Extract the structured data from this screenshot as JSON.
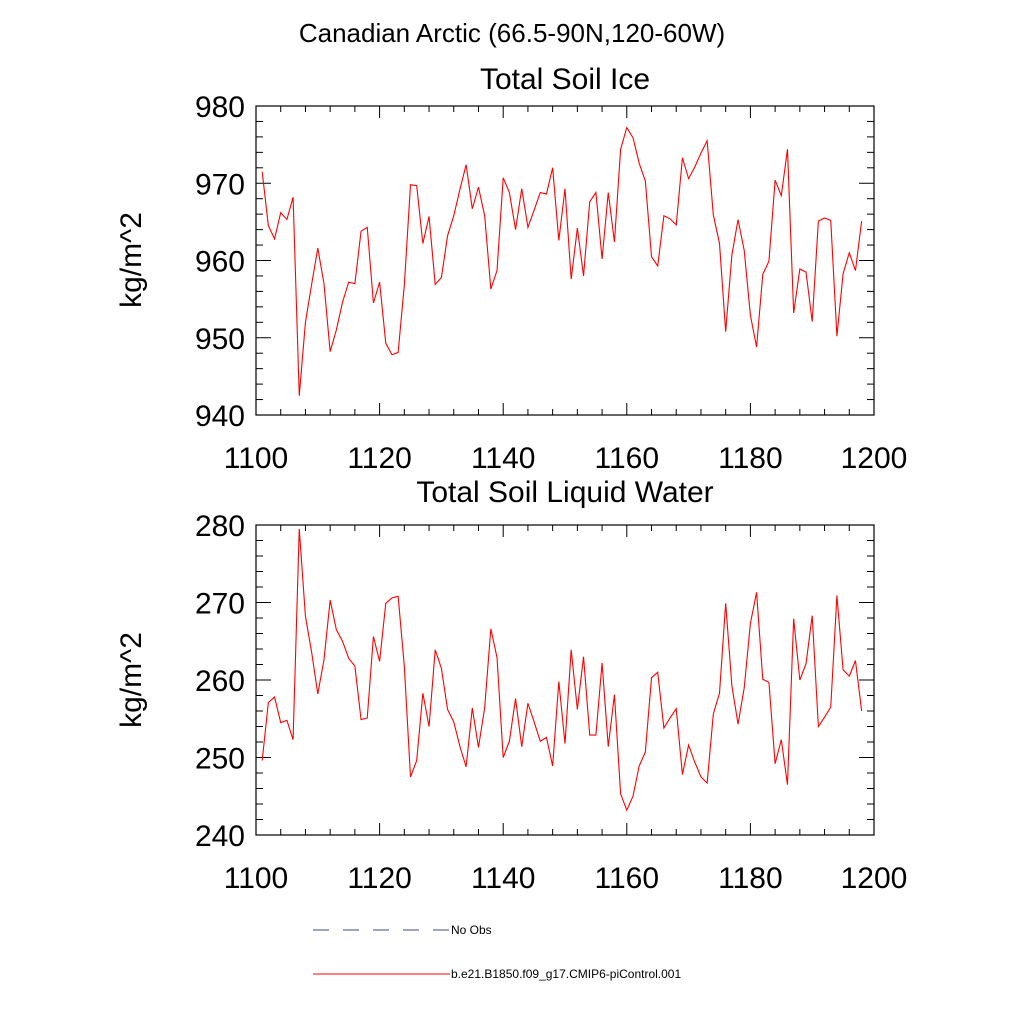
{
  "figure": {
    "title": "Canadian Arctic (66.5-90N,120-60W)"
  },
  "legend": {
    "items": [
      {
        "label": "No Obs",
        "color": "#3b4a8a",
        "style": "dashed"
      },
      {
        "label": "b.e21.B1850.f09_g17.CMIP6-piControl.001",
        "color": "#ff0000",
        "style": "solid"
      }
    ]
  },
  "chart_data": [
    {
      "type": "line",
      "title": "Total Soil Ice",
      "xlabel": "",
      "ylabel": "kg/m^2",
      "xlim": [
        1100,
        1200
      ],
      "ylim": [
        940,
        980
      ],
      "xticks": [
        1100,
        1120,
        1140,
        1160,
        1180,
        1200
      ],
      "yticks": [
        940,
        950,
        960,
        970,
        980
      ],
      "xtick_labels": [
        "1100",
        "1120",
        "1140",
        "1160",
        "1180",
        "1200"
      ],
      "ytick_labels": [
        "940",
        "950",
        "960",
        "970",
        "980"
      ],
      "series": [
        {
          "name": "b.e21.B1850.f09_g17.CMIP6-piControl.001",
          "color": "#ff0000",
          "x_start": 1101,
          "x_step": 1,
          "values": [
            971.5,
            964.5,
            962.8,
            966.2,
            965.3,
            968.2,
            942.5,
            952,
            956.9,
            961.6,
            957,
            948.2,
            951,
            954.6,
            957.2,
            957,
            963.8,
            964.3,
            954.5,
            957.2,
            949.3,
            947.8,
            948.1,
            956.8,
            969.8,
            969.7,
            962.2,
            965.7,
            956.9,
            957.8,
            963.2,
            965.8,
            969.2,
            972.4,
            966.7,
            969.5,
            965.8,
            956.3,
            958.7,
            970.7,
            968.8,
            964,
            969.3,
            964.3,
            966.5,
            968.8,
            968.6,
            972,
            962.6,
            969.3,
            957.6,
            964.2,
            958,
            967.6,
            968.8,
            960.2,
            968.8,
            962.4,
            974.4,
            977.2,
            975.9,
            972.6,
            970.3,
            960.5,
            959.3,
            965.8,
            965.4,
            964.6,
            973.3,
            970.6,
            972.1,
            973.9,
            975.5,
            965.9,
            962.2,
            950.8,
            960.7,
            965.3,
            961.3,
            952.9,
            948.8,
            958.2,
            959.9,
            970.4,
            968.4,
            974.4,
            953.2,
            958.9,
            958.5,
            952.1,
            965.1,
            965.5,
            965.2,
            950.2,
            958.3,
            961,
            958.7,
            965.1
          ]
        }
      ]
    },
    {
      "type": "line",
      "title": "Total Soil Liquid Water",
      "xlabel": "",
      "ylabel": "kg/m^2",
      "xlim": [
        1100,
        1200
      ],
      "ylim": [
        240,
        280
      ],
      "xticks": [
        1100,
        1120,
        1140,
        1160,
        1180,
        1200
      ],
      "yticks": [
        240,
        250,
        260,
        270,
        280
      ],
      "xtick_labels": [
        "1100",
        "1120",
        "1140",
        "1160",
        "1180",
        "1200"
      ],
      "ytick_labels": [
        "240",
        "250",
        "260",
        "270",
        "280"
      ],
      "series": [
        {
          "name": "b.e21.B1850.f09_g17.CMIP6-piControl.001",
          "color": "#ff0000",
          "x_start": 1101,
          "x_step": 1,
          "values": [
            249.6,
            257.1,
            257.8,
            254.5,
            254.8,
            252.3,
            279.5,
            268.2,
            263.6,
            258.2,
            262.6,
            270.3,
            266.5,
            265,
            262.8,
            261.8,
            254.9,
            255.1,
            265.6,
            262.4,
            269.9,
            270.6,
            270.8,
            261.8,
            247.5,
            249.6,
            258.3,
            254,
            263.9,
            261.5,
            256.2,
            254.6,
            251.4,
            248.8,
            256.4,
            251.3,
            256.4,
            266.6,
            262.9,
            250,
            252.1,
            257.6,
            251.4,
            257,
            254.6,
            252.1,
            252.6,
            248.9,
            259.8,
            251.8,
            263.9,
            256.2,
            263,
            252.9,
            252.9,
            262.2,
            251.4,
            258.1,
            245.3,
            243.2,
            245,
            248.9,
            250.7,
            260.3,
            261,
            253.8,
            255.1,
            256.3,
            247.8,
            251.6,
            249.4,
            247.5,
            246.7,
            255.6,
            258.3,
            269.9,
            259.3,
            254.3,
            259,
            267.3,
            271.3,
            260.1,
            259.7,
            249.2,
            252.3,
            246.5,
            267.9,
            260,
            262.1,
            268.3,
            254,
            255.2,
            256.5,
            270.9,
            261.3,
            260.5,
            262.5,
            256
          ]
        }
      ]
    }
  ]
}
